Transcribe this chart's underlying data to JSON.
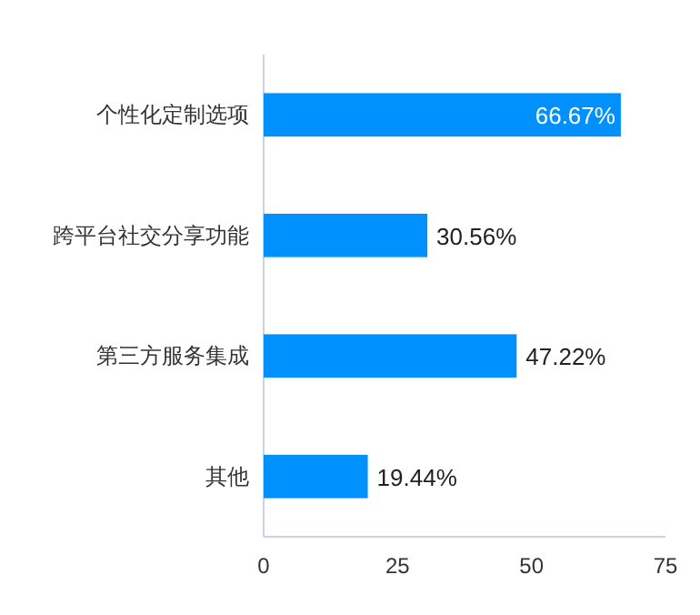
{
  "chart_data": {
    "type": "bar",
    "orientation": "horizontal",
    "categories": [
      "个性化定制选项",
      "跨平台社交分享功能",
      "第三方服务集成",
      "其他"
    ],
    "values": [
      66.67,
      30.56,
      47.22,
      19.44
    ],
    "value_labels": [
      "66.67%",
      "30.56%",
      "47.22%",
      "19.44%"
    ],
    "color": "#0091ff",
    "xlim": [
      0,
      75
    ],
    "xticks": [
      0,
      25,
      50,
      75
    ]
  }
}
